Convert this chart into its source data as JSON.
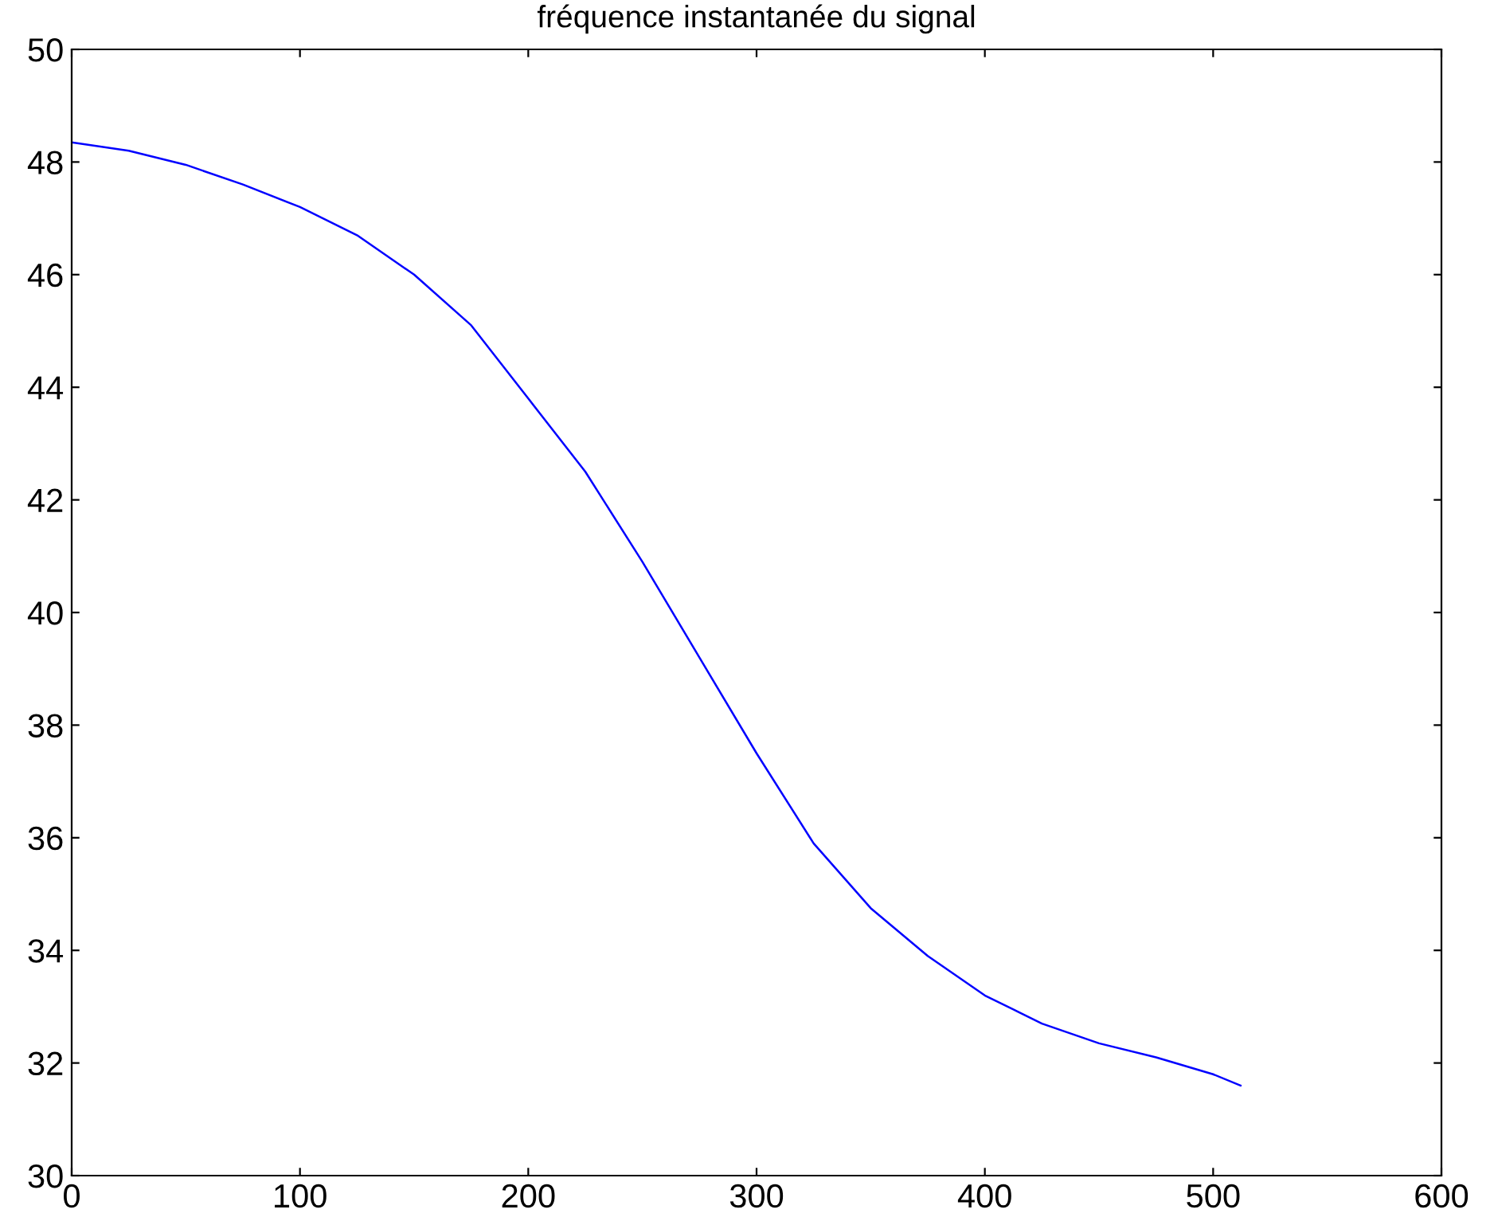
{
  "chart_data": {
    "type": "line",
    "title": "fréquence instantanée du signal",
    "x": [
      0,
      25,
      50,
      75,
      100,
      125,
      150,
      175,
      200,
      225,
      250,
      275,
      300,
      325,
      350,
      375,
      400,
      425,
      450,
      475,
      500,
      512
    ],
    "series": [
      {
        "color": "#0000ff",
        "values": [
          48.35,
          48.2,
          47.95,
          47.6,
          47.2,
          46.7,
          46.0,
          45.1,
          43.8,
          42.5,
          40.9,
          39.2,
          37.5,
          35.9,
          34.75,
          33.9,
          33.2,
          32.7,
          32.35,
          32.1,
          31.8,
          31.6
        ]
      }
    ],
    "xlim": [
      0,
      600
    ],
    "ylim": [
      30,
      50
    ],
    "xticks": [
      0,
      100,
      200,
      300,
      400,
      500,
      600
    ],
    "yticks": [
      30,
      32,
      34,
      36,
      38,
      40,
      42,
      44,
      46,
      48,
      50
    ],
    "grid": false,
    "line_style": "solid",
    "marker": "none"
  }
}
